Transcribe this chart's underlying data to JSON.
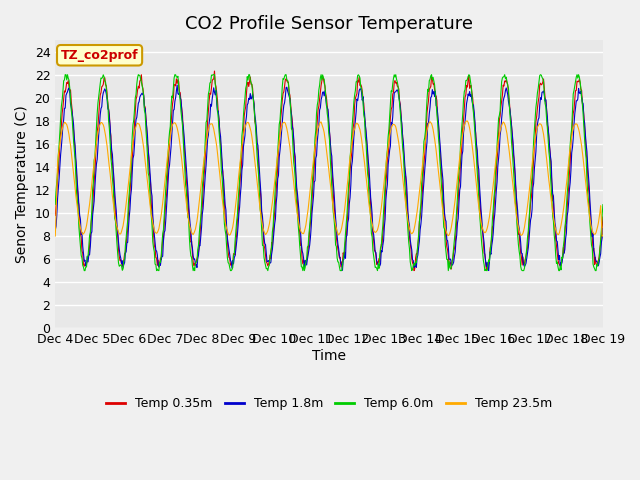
{
  "title": "CO2 Profile Sensor Temperature",
  "ylabel": "Senor Temperature (C)",
  "xlabel": "Time",
  "legend_label": "TZ_co2prof",
  "ylim": [
    0,
    25
  ],
  "yticks": [
    0,
    2,
    4,
    6,
    8,
    10,
    12,
    14,
    16,
    18,
    20,
    22,
    24
  ],
  "xtick_labels": [
    "Dec 4",
    "Dec 5",
    "Dec 6",
    "Dec 7",
    "Dec 8",
    "Dec 9",
    "Dec 10",
    "Dec 11",
    "Dec 12",
    "Dec 13",
    "Dec 14",
    "Dec 15",
    "Dec 16",
    "Dec 17",
    "Dec 18",
    "Dec 19"
  ],
  "series": [
    {
      "label": "Temp 0.35m",
      "color": "#dd0000"
    },
    {
      "label": "Temp 1.8m",
      "color": "#0000cc"
    },
    {
      "label": "Temp 6.0m",
      "color": "#00cc00"
    },
    {
      "label": "Temp 23.5m",
      "color": "#ffaa00"
    }
  ],
  "plot_bg": "#e8e8e8",
  "fig_bg": "#f0f0f0",
  "grid_color": "#ffffff",
  "legend_box_color": "#ffffcc",
  "legend_box_edge": "#cc9900",
  "title_fontsize": 13,
  "axis_fontsize": 10,
  "tick_fontsize": 9
}
